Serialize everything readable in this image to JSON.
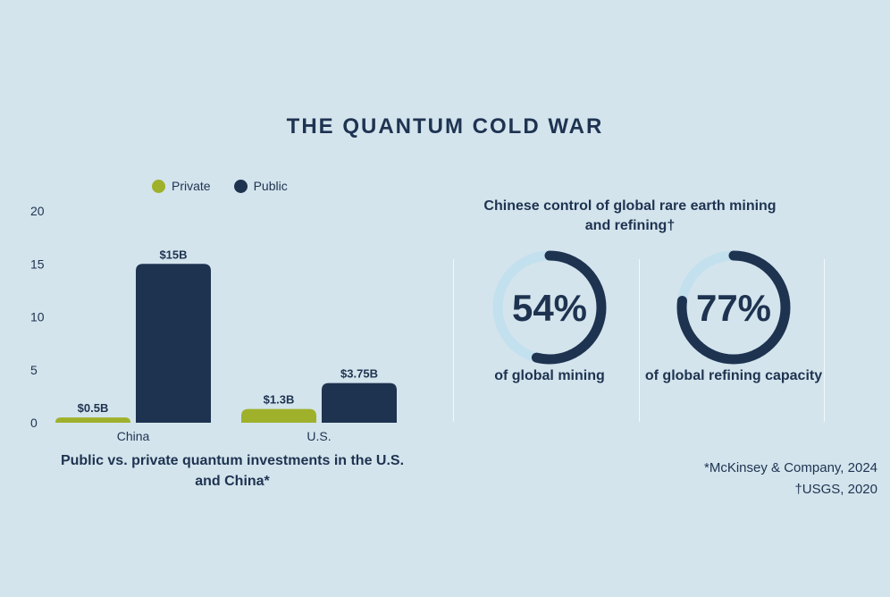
{
  "title": "THE QUANTUM COLD WAR",
  "colors": {
    "background": "#d3e4ed",
    "private": "#9fb12a",
    "public": "#1e3350",
    "donut_track": "#c3e0ee"
  },
  "legend": [
    {
      "label": "Private",
      "color": "#9fb12a"
    },
    {
      "label": "Public",
      "color": "#1e3350"
    }
  ],
  "chart_data": [
    {
      "type": "bar",
      "categories": [
        "China",
        "U.S."
      ],
      "series": [
        {
          "name": "Private",
          "values": [
            0.5,
            1.3
          ],
          "labels": [
            "$0.5B",
            "$1.3B"
          ],
          "color": "#9fb12a"
        },
        {
          "name": "Public",
          "values": [
            15,
            3.75
          ],
          "labels": [
            "$15B",
            "$3.75B"
          ],
          "color": "#1e3350"
        }
      ],
      "ylim": [
        0,
        20
      ],
      "yticks": [
        0,
        5,
        10,
        15,
        20
      ],
      "caption": "Public vs. private quantum investments in the U.S. and China*",
      "legend_position": "top"
    },
    {
      "type": "pie",
      "heading": "Chinese control of global rare earth mining and refining†",
      "items": [
        {
          "value": 54,
          "display": "54%",
          "label": "of global mining"
        },
        {
          "value": 77,
          "display": "77%",
          "label": "of global refining capacity"
        }
      ]
    }
  ],
  "sources": [
    "*McKinsey & Company, 2024",
    "†USGS, 2020"
  ]
}
